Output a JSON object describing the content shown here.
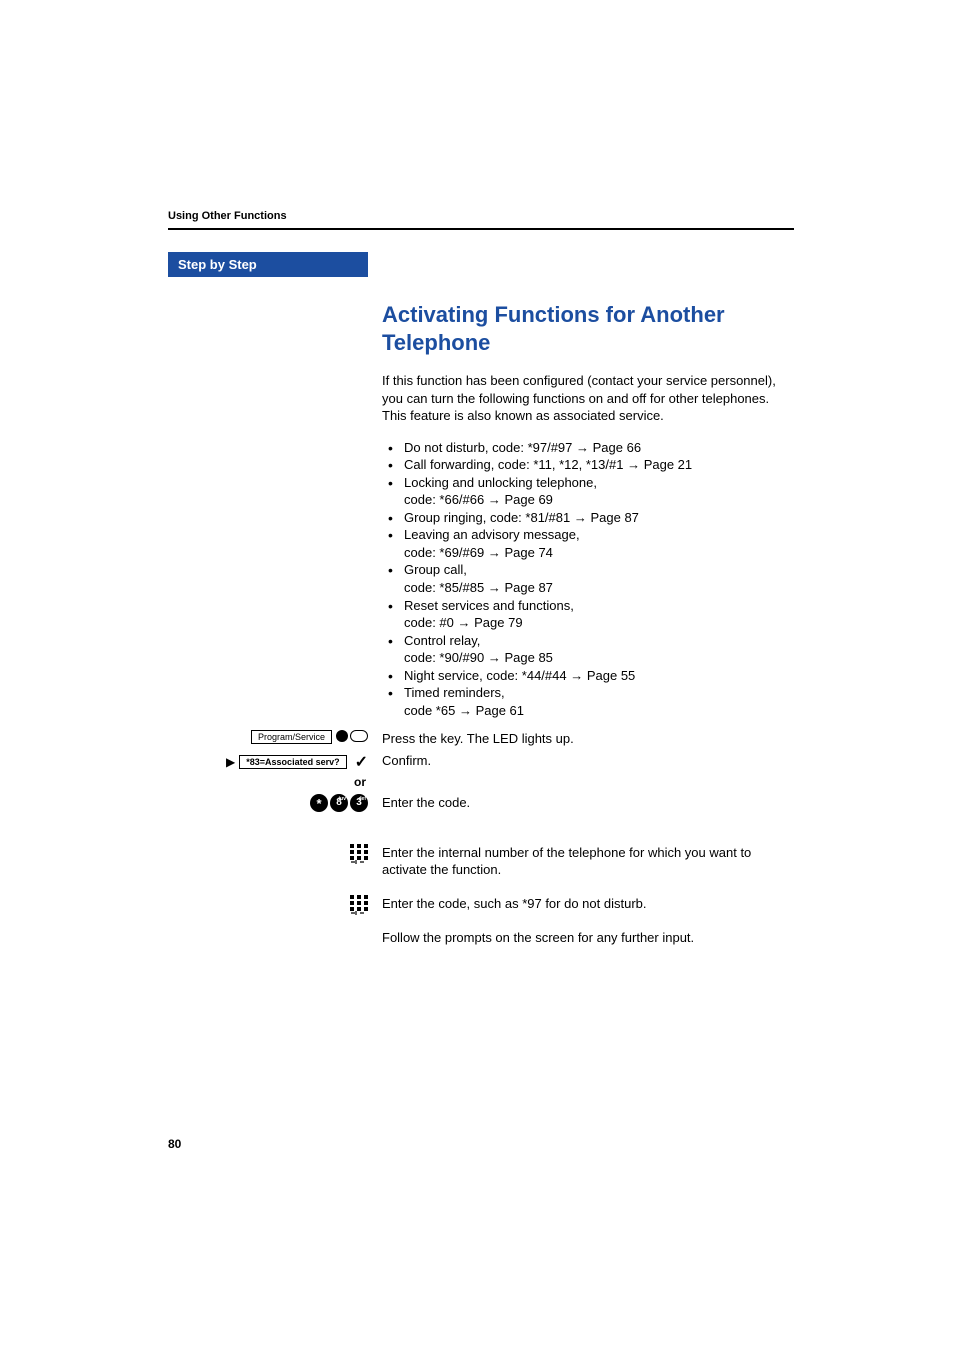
{
  "header": {
    "section": "Using Other Functions"
  },
  "banner": "Step by Step",
  "title": "Activating Functions for Another Telephone",
  "intro": "If this function has been configured (contact your service personnel), you can turn the following functions on and off for other telephones. This feature is also known as associated service.",
  "features": [
    {
      "text": "Do not disturb, code: *97/#97",
      "page": "Page 66"
    },
    {
      "text": "Call forwarding, code: *11, *12, *13/#1",
      "page": "Page 21"
    },
    {
      "text": "Locking and unlocking telephone,",
      "cont": "code: *66/#66",
      "page": "Page 69"
    },
    {
      "text": "Group ringing, code: *81/#81",
      "page": "Page 87"
    },
    {
      "text": "Leaving an advisory message,",
      "cont": "code: *69/#69",
      "page": "Page 74"
    },
    {
      "text": "Group call,",
      "cont": "code: *85/#85",
      "page": "Page 87"
    },
    {
      "text": "Reset services and functions,",
      "cont": "code: #0",
      "page": "Page 79"
    },
    {
      "text": "Control relay,",
      "cont": "code: *90/#90",
      "page": "Page 85"
    },
    {
      "text": "Night service, code: *44/#44",
      "page": "Page 55"
    },
    {
      "text": "Timed reminders,",
      "cont": "code *65",
      "page": "Page 61"
    }
  ],
  "steps": {
    "press_key": {
      "label": "Program/Service",
      "text": "Press the key. The LED lights up."
    },
    "confirm": {
      "label": "*83=Associated serv?",
      "text": "Confirm."
    },
    "or": "or",
    "enter_code": {
      "keys": [
        "*",
        "8",
        "3"
      ],
      "text": "Enter the code."
    },
    "enter_internal": "Enter the internal number of the telephone for which you want to activate the function.",
    "enter_func_code": "Enter the code, such as *97 for do not disturb.",
    "follow": "Follow the prompts on the screen for any further input."
  },
  "pageNumber": "80",
  "colors": {
    "accent": "#1c4ea0",
    "text": "#000000",
    "bg": "#ffffff"
  }
}
